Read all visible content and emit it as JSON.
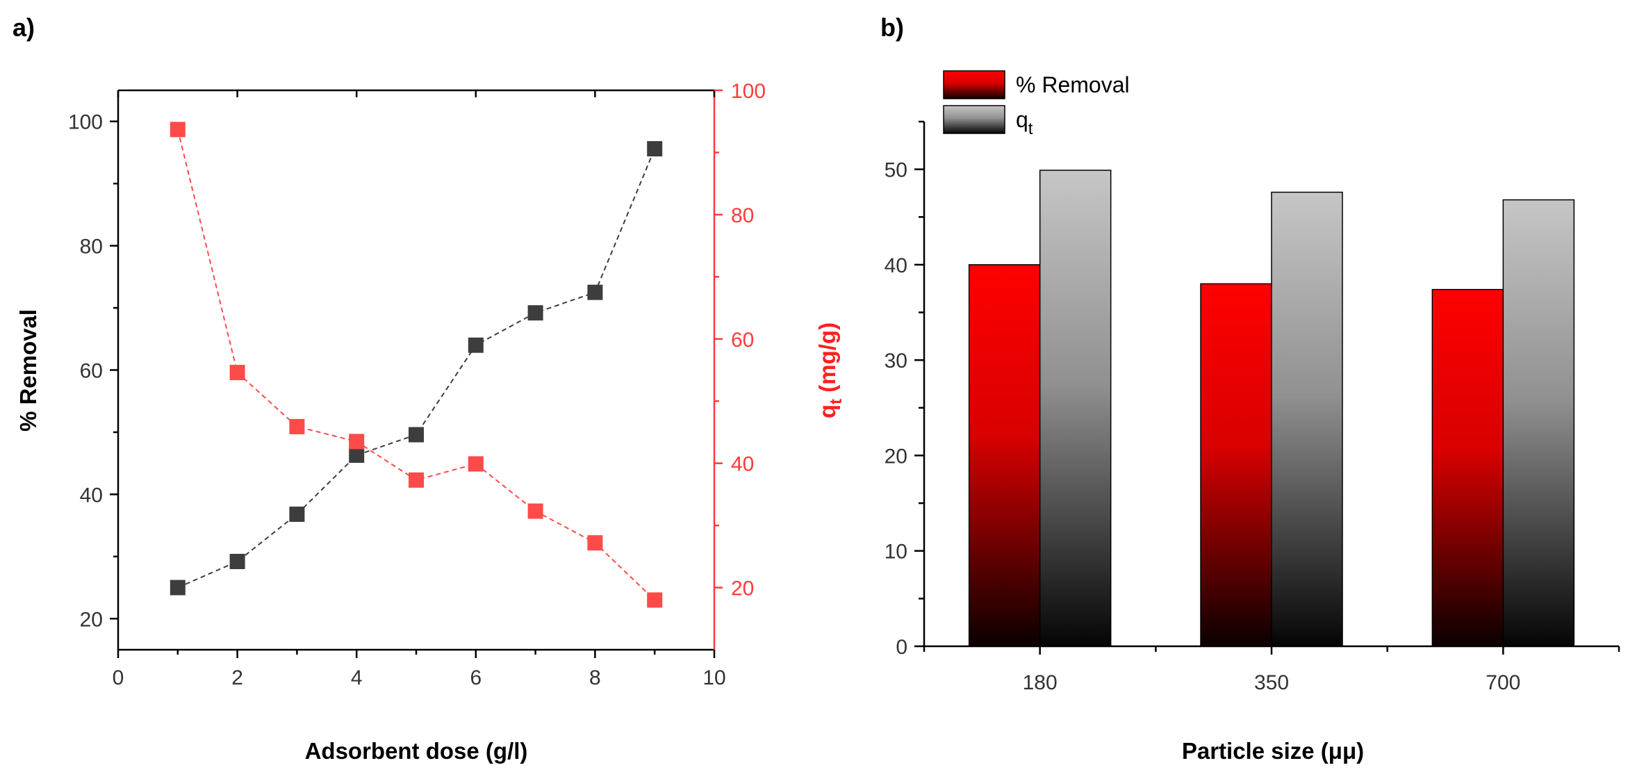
{
  "chart_data": [
    {
      "panel_label": "a)",
      "type": "scatter",
      "xlabel": "Adsorbent dose (g/l)",
      "xlim": [
        0,
        10
      ],
      "xticks": [
        "0",
        "2",
        "4",
        "6",
        "8",
        "10"
      ],
      "y_left": {
        "label": "% Removal",
        "lim": [
          15,
          105
        ],
        "ticks": [
          "20",
          "40",
          "60",
          "80",
          "100"
        ],
        "color": "#4a4a4a"
      },
      "y_right": {
        "label_main": "q",
        "label_sub": "t",
        "label_units": " (mg/g)",
        "lim": [
          10,
          100
        ],
        "ticks": [
          "20",
          "40",
          "60",
          "80",
          "100"
        ],
        "color": "#ff4040"
      },
      "series": [
        {
          "name": "% Removal",
          "axis": "left",
          "color": "#3d3d3d",
          "x": [
            1,
            2,
            3,
            4,
            5,
            6,
            7,
            8,
            9
          ],
          "y": [
            25.0,
            29.2,
            36.8,
            46.3,
            49.6,
            64.0,
            69.2,
            72.5,
            95.6
          ]
        },
        {
          "name": "qt",
          "axis": "right",
          "color": "#ff4a4a",
          "x": [
            1,
            2,
            3,
            4,
            5,
            6,
            7,
            8,
            9
          ],
          "y": [
            93.7,
            54.6,
            45.9,
            43.5,
            37.3,
            39.9,
            32.3,
            27.2,
            18.0
          ]
        }
      ]
    },
    {
      "panel_label": "b)",
      "type": "bar",
      "xlabel": "Particle size (μμ)",
      "ylim": [
        0,
        55
      ],
      "yticks": [
        "0",
        "10",
        "20",
        "30",
        "40",
        "50"
      ],
      "categories": [
        "180",
        "350",
        "700"
      ],
      "legend": {
        "placement": "top-left",
        "removal_label": "% Removal",
        "qt_main": "q",
        "qt_sub": "t"
      },
      "series": [
        {
          "name": "% Removal",
          "color": "#ff0000",
          "values": [
            40.0,
            38.0,
            37.4
          ]
        },
        {
          "name": "qt",
          "color": "#c0c0c0",
          "values": [
            49.9,
            47.6,
            46.8
          ]
        }
      ]
    }
  ]
}
